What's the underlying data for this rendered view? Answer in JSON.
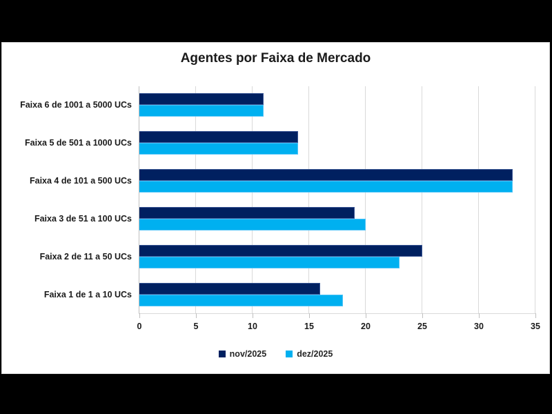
{
  "chart_data": {
    "type": "bar",
    "orientation": "horizontal",
    "title": "Agentes por Faixa de Mercado",
    "categories": [
      "Faixa 6 de 1001 a 5000 UCs",
      "Faixa 5 de 501 a 1000 UCs",
      "Faixa 4 de 101 a 500 UCs",
      "Faixa 3 de 51 a 100 UCs",
      "Faixa 2 de 11 a 50 UCs",
      "Faixa 1 de 1 a 10 UCs"
    ],
    "series": [
      {
        "name": "nov/2025",
        "color": "#002060",
        "border_color": "#3a5795",
        "values": [
          11,
          14,
          33,
          19,
          25,
          16
        ]
      },
      {
        "name": "dez/2025",
        "color": "#00b0f0",
        "border_color": "#4fc3f7",
        "values": [
          11,
          14,
          33,
          20,
          23,
          18
        ]
      }
    ],
    "xlim": [
      0,
      35
    ],
    "x_ticks": [
      0,
      5,
      10,
      15,
      20,
      25,
      30,
      35
    ],
    "grid": true,
    "legend_position": "bottom"
  },
  "colors": {
    "page_background": "#000000",
    "panel_background": "#ffffff",
    "panel_border": "#d9d9d9",
    "gridline": "#d9d9d9",
    "axis_line": "#bfbfbf",
    "text": "#1a1a1a"
  }
}
